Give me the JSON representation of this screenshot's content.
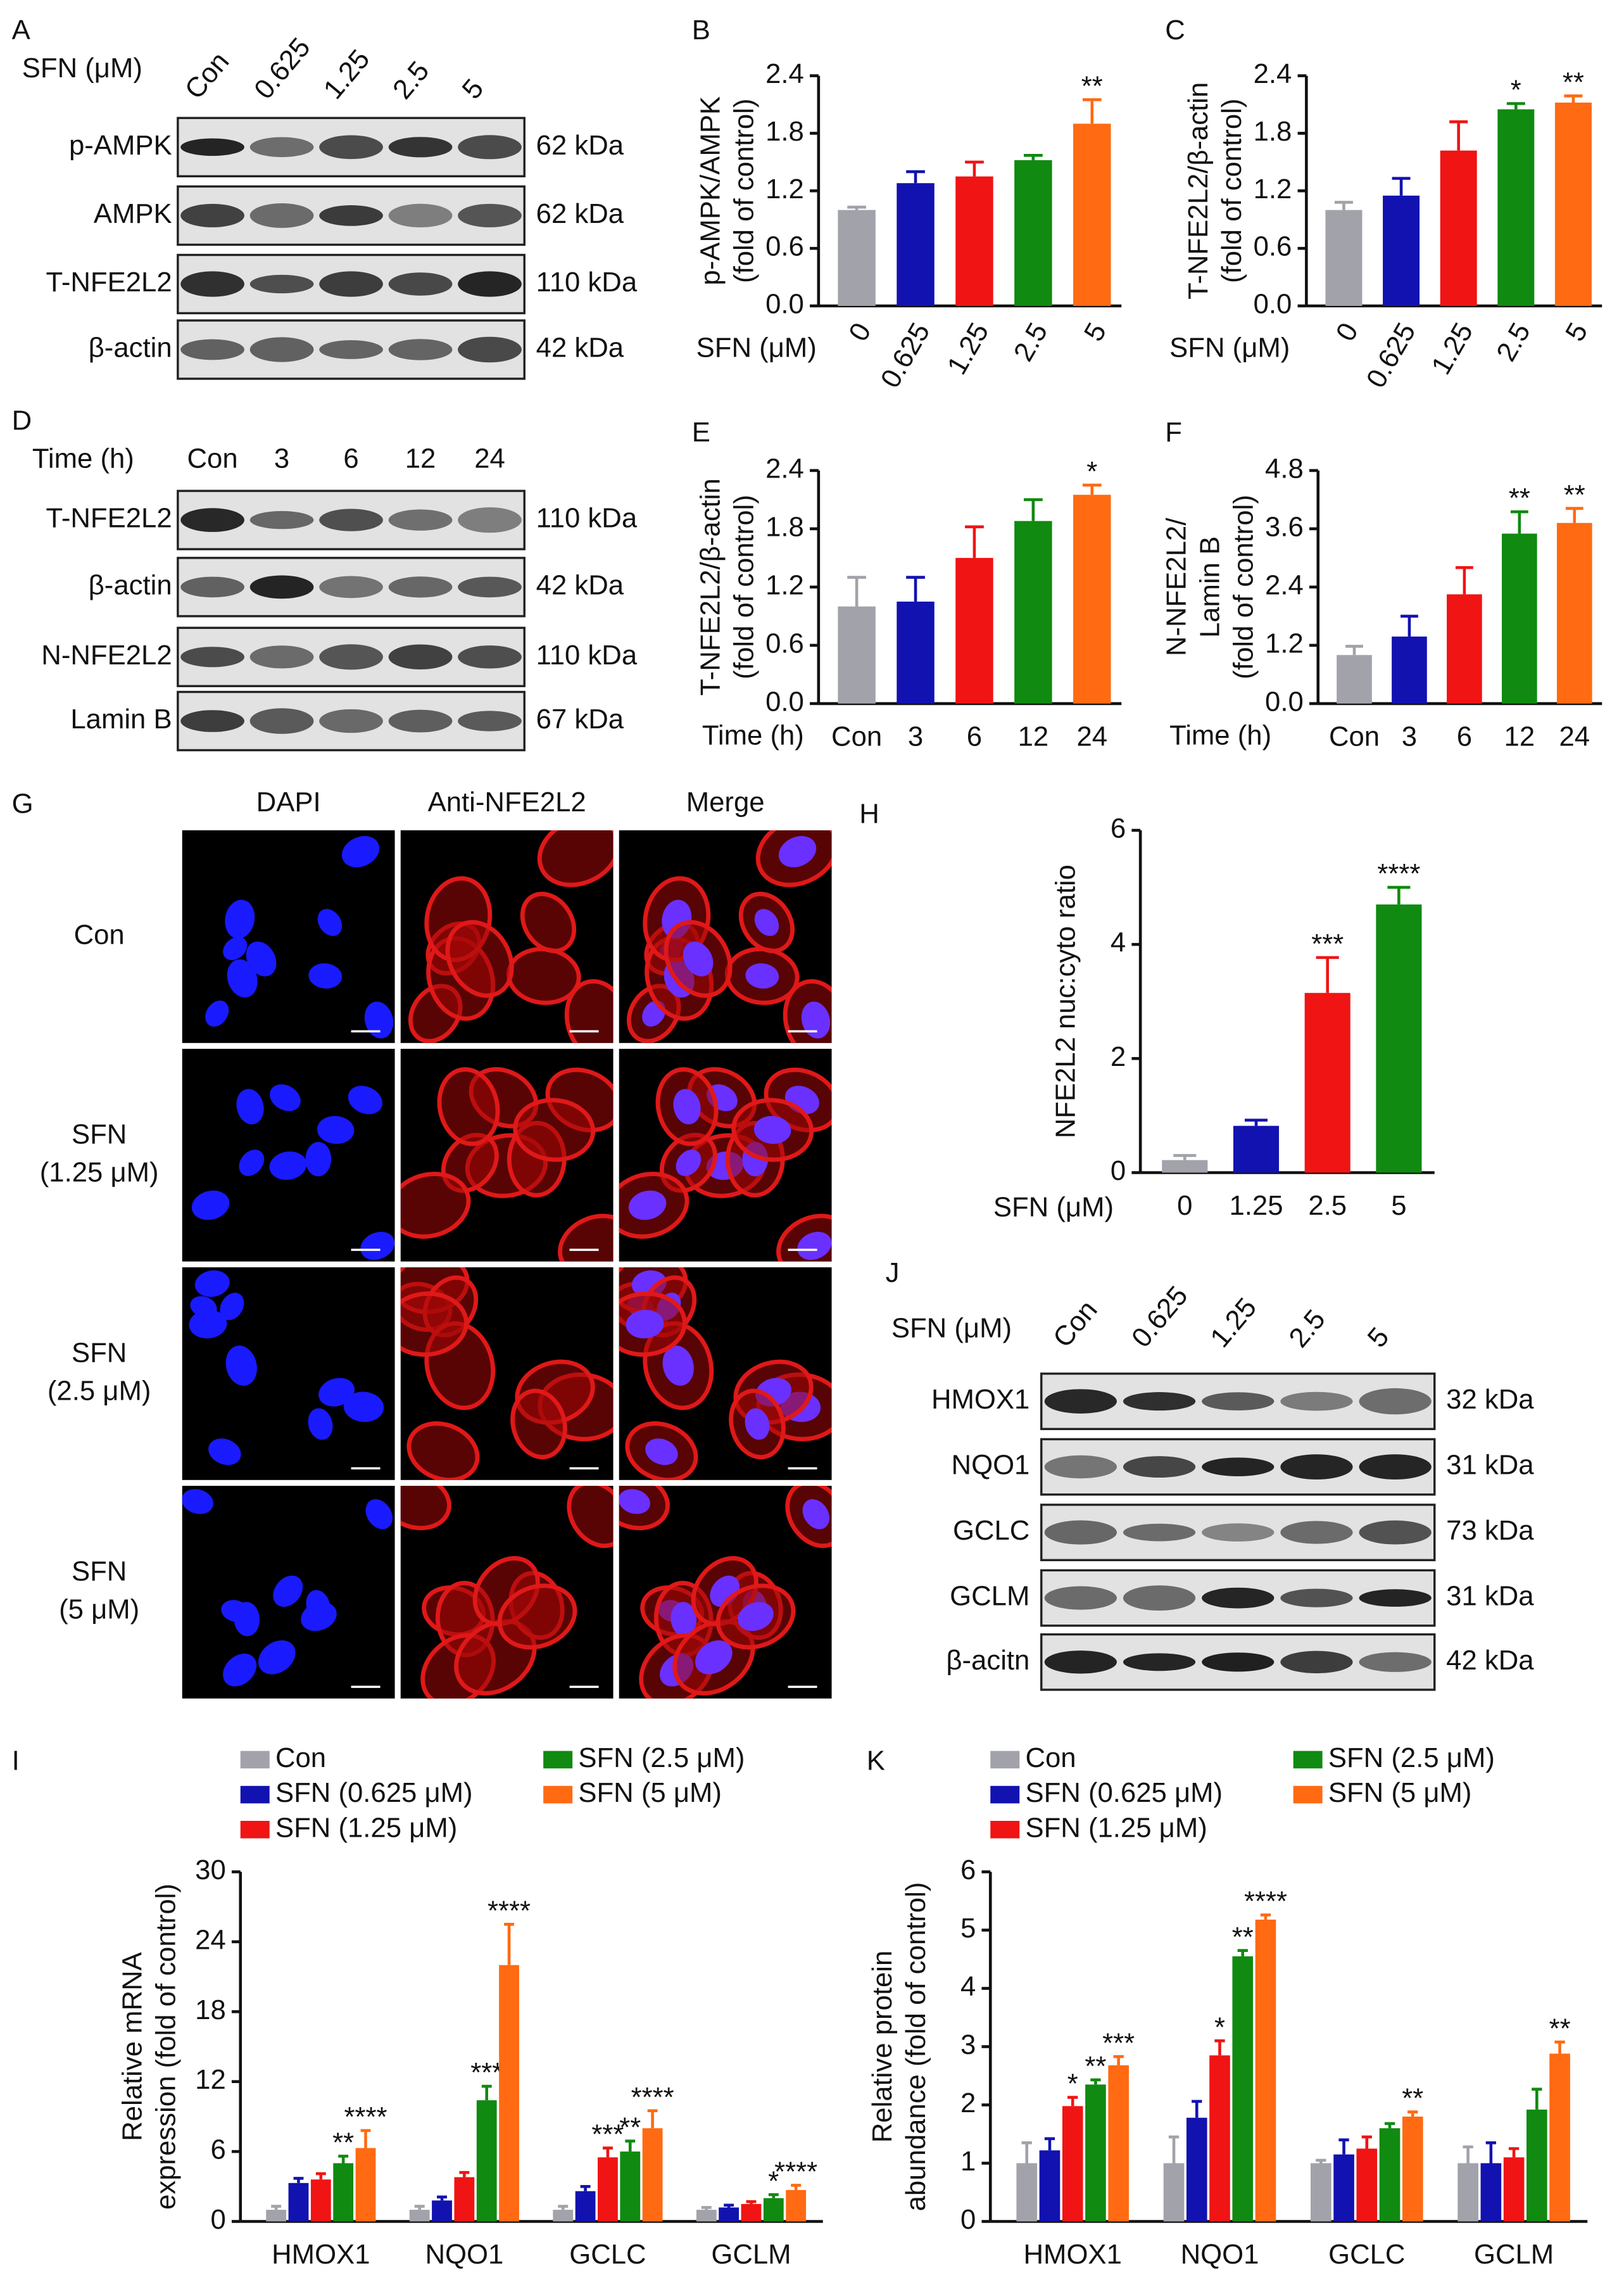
{
  "chart_data": [
    {
      "type": "bar",
      "panel": "B",
      "y_label": [
        "p-AMPK/AMPK",
        "(fold of control)"
      ],
      "x_label": "SFN (μM)",
      "rotate_categories": true,
      "categories": [
        "0",
        "0.625",
        "1.25",
        "2.5",
        "5"
      ],
      "values": [
        1.0,
        1.28,
        1.35,
        1.52,
        1.9
      ],
      "errors": [
        0.03,
        0.12,
        0.15,
        0.05,
        0.25
      ],
      "annotations": [
        null,
        null,
        null,
        null,
        "**"
      ],
      "colors": [
        "#a2a2aa",
        "#1212b0",
        "#f01414",
        "#108a10",
        "#ff6a12"
      ],
      "ylim": [
        0,
        2.4
      ],
      "yticks": [
        {
          "value": 0,
          "label": "0.0"
        },
        {
          "value": 0.6,
          "label": "0.6"
        },
        {
          "value": 1.2,
          "label": "1.2"
        },
        {
          "value": 1.8,
          "label": "1.8"
        },
        {
          "value": 2.4,
          "label": "2.4"
        }
      ]
    },
    {
      "type": "bar",
      "panel": "C",
      "y_label": [
        "T-NFE2L2/β-actin",
        "(fold of control)"
      ],
      "x_label": "SFN (μM)",
      "rotate_categories": true,
      "categories": [
        "0",
        "0.625",
        "1.25",
        "2.5",
        "5"
      ],
      "values": [
        1.0,
        1.15,
        1.62,
        2.05,
        2.12
      ],
      "errors": [
        0.08,
        0.18,
        0.3,
        0.06,
        0.07
      ],
      "annotations": [
        null,
        null,
        null,
        "*",
        "**"
      ],
      "colors": [
        "#a2a2aa",
        "#1212b0",
        "#f01414",
        "#108a10",
        "#ff6a12"
      ],
      "ylim": [
        0,
        2.4
      ],
      "yticks": [
        {
          "value": 0,
          "label": "0.0"
        },
        {
          "value": 0.6,
          "label": "0.6"
        },
        {
          "value": 1.2,
          "label": "1.2"
        },
        {
          "value": 1.8,
          "label": "1.8"
        },
        {
          "value": 2.4,
          "label": "2.4"
        }
      ]
    },
    {
      "type": "bar",
      "panel": "E",
      "y_label": [
        "T-NFE2L2/β-actin",
        "(fold of control)"
      ],
      "x_label": "Time (h)",
      "rotate_categories": false,
      "categories": [
        "Con",
        "3",
        "6",
        "12",
        "24"
      ],
      "values": [
        1.0,
        1.05,
        1.5,
        1.88,
        2.15
      ],
      "errors": [
        0.3,
        0.25,
        0.32,
        0.22,
        0.1
      ],
      "annotations": [
        null,
        null,
        null,
        null,
        "*"
      ],
      "colors": [
        "#a2a2aa",
        "#1212b0",
        "#f01414",
        "#108a10",
        "#ff6a12"
      ],
      "ylim": [
        0,
        2.4
      ],
      "yticks": [
        {
          "value": 0,
          "label": "0.0"
        },
        {
          "value": 0.6,
          "label": "0.6"
        },
        {
          "value": 1.2,
          "label": "1.2"
        },
        {
          "value": 1.8,
          "label": "1.8"
        },
        {
          "value": 2.4,
          "label": "2.4"
        }
      ]
    },
    {
      "type": "bar",
      "panel": "F",
      "y_label": [
        "N-NFE2L2/",
        "Lamin B",
        "(fold of control)"
      ],
      "x_label": "Time (h)",
      "rotate_categories": false,
      "categories": [
        "Con",
        "3",
        "6",
        "12",
        "24"
      ],
      "values": [
        1.0,
        1.38,
        2.25,
        3.5,
        3.72
      ],
      "errors": [
        0.18,
        0.42,
        0.55,
        0.45,
        0.3
      ],
      "annotations": [
        null,
        null,
        null,
        "**",
        "**"
      ],
      "colors": [
        "#a2a2aa",
        "#1212b0",
        "#f01414",
        "#108a10",
        "#ff6a12"
      ],
      "ylim": [
        0,
        4.8
      ],
      "yticks": [
        {
          "value": 0,
          "label": "0.0"
        },
        {
          "value": 1.2,
          "label": "1.2"
        },
        {
          "value": 2.4,
          "label": "2.4"
        },
        {
          "value": 3.6,
          "label": "3.6"
        },
        {
          "value": 4.8,
          "label": "4.8"
        }
      ]
    },
    {
      "type": "bar",
      "panel": "H",
      "y_label": [
        "NFE2L2 nuc:cyto ratio"
      ],
      "x_label": "SFN (μM)",
      "rotate_categories": false,
      "categories": [
        "0",
        "1.25",
        "2.5",
        "5"
      ],
      "values": [
        0.22,
        0.82,
        3.15,
        4.7
      ],
      "errors": [
        0.08,
        0.1,
        0.62,
        0.3
      ],
      "annotations": [
        null,
        null,
        "***",
        "****"
      ],
      "colors": [
        "#a2a2aa",
        "#1212b0",
        "#f01414",
        "#108a10"
      ],
      "ylim": [
        0,
        6
      ],
      "yticks": [
        0,
        2,
        4,
        6
      ]
    },
    {
      "type": "grouped_bar",
      "panel": "I",
      "y_label": [
        "Relative mRNA",
        "expression (fold of control)"
      ],
      "categories": [
        "HMOX1",
        "NQO1",
        "GCLC",
        "GCLM"
      ],
      "series": [
        {
          "name": "Con",
          "color": "#a2a2aa",
          "values": [
            1.0,
            1.0,
            1.0,
            1.0
          ],
          "errors": [
            0.3,
            0.3,
            0.3,
            0.2
          ],
          "annotations": [
            null,
            null,
            null,
            null
          ]
        },
        {
          "name": "SFN (0.625 μM)",
          "color": "#1212b0",
          "values": [
            3.3,
            1.8,
            2.6,
            1.2
          ],
          "errors": [
            0.4,
            0.3,
            0.4,
            0.2
          ],
          "annotations": [
            null,
            null,
            null,
            null
          ]
        },
        {
          "name": "SFN (1.25 μM)",
          "color": "#f01414",
          "values": [
            3.6,
            3.8,
            5.5,
            1.5
          ],
          "errors": [
            0.5,
            0.4,
            0.8,
            0.2
          ],
          "annotations": [
            null,
            null,
            "***",
            null
          ]
        },
        {
          "name": "SFN (2.5 μM)",
          "color": "#108a10",
          "values": [
            5.0,
            10.4,
            6.0,
            2.0
          ],
          "errors": [
            0.6,
            1.2,
            0.9,
            0.3
          ],
          "annotations": [
            "**",
            "***",
            "**",
            "*"
          ]
        },
        {
          "name": "SFN (5 μM)",
          "color": "#ff6a12",
          "values": [
            6.3,
            22,
            8.0,
            2.7
          ],
          "errors": [
            1.5,
            3.5,
            1.5,
            0.4
          ],
          "annotations": [
            "****",
            "****",
            "****",
            "****"
          ]
        }
      ],
      "ylim": [
        0,
        30
      ],
      "yticks": [
        0,
        6,
        12,
        18,
        24,
        30
      ]
    },
    {
      "type": "grouped_bar",
      "panel": "K",
      "y_label": [
        "Relative protein",
        "abundance (fold of control)"
      ],
      "categories": [
        "HMOX1",
        "NQO1",
        "GCLC",
        "GCLM"
      ],
      "series": [
        {
          "name": "Con",
          "color": "#a2a2aa",
          "values": [
            1.0,
            1.0,
            1.0,
            1.0
          ],
          "errors": [
            0.35,
            0.45,
            0.05,
            0.28
          ],
          "annotations": [
            null,
            null,
            null,
            null
          ]
        },
        {
          "name": "SFN (0.625 μM)",
          "color": "#1212b0",
          "values": [
            1.22,
            1.78,
            1.15,
            1.0
          ],
          "errors": [
            0.2,
            0.28,
            0.25,
            0.35
          ],
          "annotations": [
            null,
            null,
            null,
            null
          ]
        },
        {
          "name": "SFN (1.25 μM)",
          "color": "#f01414",
          "values": [
            1.98,
            2.85,
            1.25,
            1.1
          ],
          "errors": [
            0.15,
            0.25,
            0.2,
            0.15
          ],
          "annotations": [
            "*",
            "*",
            null,
            null
          ]
        },
        {
          "name": "SFN (2.5 μM)",
          "color": "#108a10",
          "values": [
            2.35,
            4.55,
            1.6,
            1.92
          ],
          "errors": [
            0.08,
            0.1,
            0.08,
            0.35
          ],
          "annotations": [
            "**",
            "**",
            null,
            null
          ]
        },
        {
          "name": "SFN (5 μM)",
          "color": "#ff6a12",
          "values": [
            2.68,
            5.18,
            1.8,
            2.88
          ],
          "errors": [
            0.15,
            0.08,
            0.08,
            0.2
          ],
          "annotations": [
            "***",
            "****",
            "**",
            "**"
          ]
        }
      ],
      "ylim": [
        0,
        6
      ],
      "yticks": [
        0,
        1,
        2,
        3,
        4,
        5,
        6
      ]
    }
  ],
  "blots": [
    {
      "panel": "A",
      "condition_label": "SFN (μM)",
      "lanes": [
        "Con",
        "0.625",
        "1.25",
        "2.5",
        "5"
      ],
      "rows": [
        {
          "protein": "p-AMPK",
          "size": "62 kDa"
        },
        {
          "protein": "AMPK",
          "size": "62 kDa"
        },
        {
          "protein": "T-NFE2L2",
          "size": "110 kDa"
        },
        {
          "protein": "β-actin",
          "size": "42 kDa"
        }
      ]
    },
    {
      "panel": "D",
      "condition_label": "Time (h)",
      "lanes": [
        "Con",
        "3",
        "6",
        "12",
        "24"
      ],
      "rows": [
        {
          "protein": "T-NFE2L2",
          "size": "110 kDa"
        },
        {
          "protein": "β-actin",
          "size": "42 kDa"
        },
        {
          "protein": "N-NFE2L2",
          "size": "110 kDa"
        },
        {
          "protein": "Lamin B",
          "size": "67 kDa"
        }
      ]
    },
    {
      "panel": "J",
      "condition_label": "SFN (μM)",
      "lanes": [
        "Con",
        "0.625",
        "1.25",
        "2.5",
        "5"
      ],
      "rows": [
        {
          "protein": "HMOX1",
          "size": "32 kDa"
        },
        {
          "protein": "NQO1",
          "size": "31 kDa"
        },
        {
          "protein": "GCLC",
          "size": "73 kDa"
        },
        {
          "protein": "GCLM",
          "size": "31 kDa"
        },
        {
          "protein": "β-acitn",
          "size": "42 kDa"
        }
      ]
    }
  ],
  "microscopy": {
    "panel": "G",
    "columns": [
      "DAPI",
      "Anti-NFE2L2",
      "Merge"
    ],
    "rows": [
      [
        "Con"
      ],
      [
        "SFN",
        "(1.25 μM)"
      ],
      [
        "SFN",
        "(2.5 μM)"
      ],
      [
        "SFN",
        "(5 μM)"
      ]
    ]
  }
}
